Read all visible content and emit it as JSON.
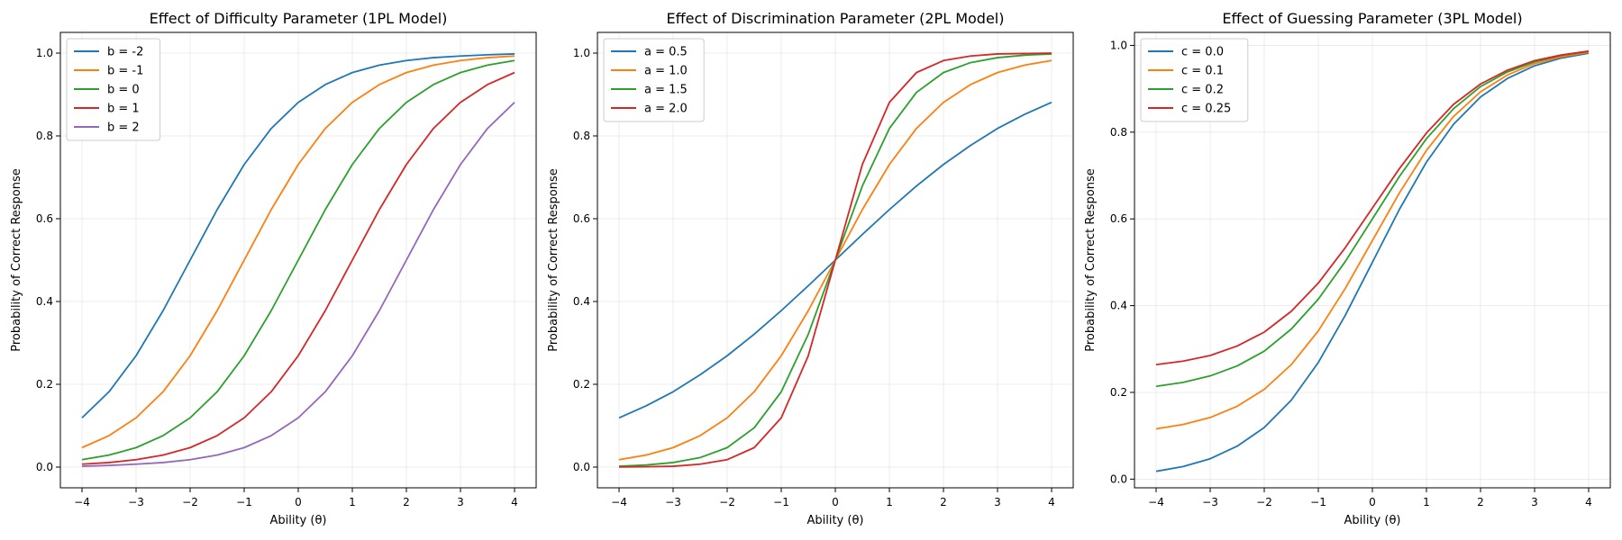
{
  "chart_data": [
    {
      "type": "line",
      "title": "Effect of Difficulty Parameter (1PL Model)",
      "xlabel": "Ability (θ)",
      "ylabel": "Probability of Correct Response",
      "xlim": [
        -4.4,
        4.4
      ],
      "ylim": [
        -0.05,
        1.05
      ],
      "xticks": [
        -4,
        -3,
        -2,
        -1,
        0,
        1,
        2,
        3,
        4
      ],
      "yticks": [
        0.0,
        0.2,
        0.4,
        0.6,
        0.8,
        1.0
      ],
      "grid": true,
      "legend_loc": "upper-left",
      "x": [
        -4,
        -3.5,
        -3,
        -2.5,
        -2,
        -1.5,
        -1,
        -0.5,
        0,
        0.5,
        1,
        1.5,
        2,
        2.5,
        3,
        3.5,
        4
      ],
      "series": [
        {
          "name": "b = -2",
          "color": "#1f77b4",
          "values": [
            0.119,
            0.182,
            0.269,
            0.378,
            0.5,
            0.622,
            0.731,
            0.818,
            0.881,
            0.924,
            0.953,
            0.971,
            0.982,
            0.989,
            0.993,
            0.996,
            0.998
          ]
        },
        {
          "name": "b = -1",
          "color": "#ff7f0e",
          "values": [
            0.047,
            0.076,
            0.119,
            0.182,
            0.269,
            0.378,
            0.5,
            0.622,
            0.731,
            0.818,
            0.881,
            0.924,
            0.953,
            0.971,
            0.982,
            0.989,
            0.993
          ]
        },
        {
          "name": "b = 0",
          "color": "#2ca02c",
          "values": [
            0.018,
            0.029,
            0.047,
            0.076,
            0.119,
            0.182,
            0.269,
            0.378,
            0.5,
            0.622,
            0.731,
            0.818,
            0.881,
            0.924,
            0.953,
            0.971,
            0.982
          ]
        },
        {
          "name": "b = 1",
          "color": "#d62728",
          "values": [
            0.007,
            0.011,
            0.018,
            0.029,
            0.047,
            0.076,
            0.119,
            0.182,
            0.269,
            0.378,
            0.5,
            0.622,
            0.731,
            0.818,
            0.881,
            0.924,
            0.953
          ]
        },
        {
          "name": "b = 2",
          "color": "#9467bd",
          "values": [
            0.002,
            0.004,
            0.007,
            0.011,
            0.018,
            0.029,
            0.047,
            0.076,
            0.119,
            0.182,
            0.269,
            0.378,
            0.5,
            0.622,
            0.731,
            0.818,
            0.881
          ]
        }
      ]
    },
    {
      "type": "line",
      "title": "Effect of Discrimination Parameter (2PL Model)",
      "xlabel": "Ability (θ)",
      "ylabel": "Probability of Correct Response",
      "xlim": [
        -4.4,
        4.4
      ],
      "ylim": [
        -0.05,
        1.05
      ],
      "xticks": [
        -4,
        -3,
        -2,
        -1,
        0,
        1,
        2,
        3,
        4
      ],
      "yticks": [
        0.0,
        0.2,
        0.4,
        0.6,
        0.8,
        1.0
      ],
      "grid": true,
      "legend_loc": "upper-left",
      "x": [
        -4,
        -3.5,
        -3,
        -2.5,
        -2,
        -1.5,
        -1,
        -0.5,
        0,
        0.5,
        1,
        1.5,
        2,
        2.5,
        3,
        3.5,
        4
      ],
      "series": [
        {
          "name": "a = 0.5",
          "color": "#1f77b4",
          "values": [
            0.119,
            0.148,
            0.182,
            0.223,
            0.269,
            0.321,
            0.378,
            0.438,
            0.5,
            0.562,
            0.622,
            0.679,
            0.731,
            0.777,
            0.818,
            0.852,
            0.881
          ]
        },
        {
          "name": "a = 1.0",
          "color": "#ff7f0e",
          "values": [
            0.018,
            0.029,
            0.047,
            0.076,
            0.119,
            0.182,
            0.269,
            0.378,
            0.5,
            0.622,
            0.731,
            0.818,
            0.881,
            0.924,
            0.953,
            0.971,
            0.982
          ]
        },
        {
          "name": "a = 1.5",
          "color": "#2ca02c",
          "values": [
            0.002,
            0.005,
            0.011,
            0.023,
            0.047,
            0.095,
            0.182,
            0.321,
            0.5,
            0.679,
            0.818,
            0.905,
            0.953,
            0.977,
            0.989,
            0.995,
            0.998
          ]
        },
        {
          "name": "a = 2.0",
          "color": "#d62728",
          "values": [
            0.0003,
            0.0009,
            0.002,
            0.007,
            0.018,
            0.047,
            0.119,
            0.269,
            0.5,
            0.731,
            0.881,
            0.953,
            0.982,
            0.993,
            0.998,
            0.999,
            1.0
          ]
        }
      ]
    },
    {
      "type": "line",
      "title": "Effect of Guessing Parameter (3PL Model)",
      "xlabel": "Ability (θ)",
      "ylabel": "Probability of Correct Response",
      "xlim": [
        -4.4,
        4.4
      ],
      "ylim": [
        -0.02,
        1.03
      ],
      "xticks": [
        -4,
        -3,
        -2,
        -1,
        0,
        1,
        2,
        3,
        4
      ],
      "yticks": [
        0.0,
        0.2,
        0.4,
        0.6,
        0.8,
        1.0
      ],
      "grid": true,
      "legend_loc": "upper-left",
      "x": [
        -4,
        -3.5,
        -3,
        -2.5,
        -2,
        -1.5,
        -1,
        -0.5,
        0,
        0.5,
        1,
        1.5,
        2,
        2.5,
        3,
        3.5,
        4
      ],
      "series": [
        {
          "name": "c = 0.0",
          "color": "#1f77b4",
          "values": [
            0.018,
            0.029,
            0.047,
            0.076,
            0.119,
            0.182,
            0.269,
            0.378,
            0.5,
            0.622,
            0.731,
            0.818,
            0.881,
            0.924,
            0.953,
            0.971,
            0.982
          ]
        },
        {
          "name": "c = 0.1",
          "color": "#ff7f0e",
          "values": [
            0.116,
            0.126,
            0.142,
            0.168,
            0.207,
            0.264,
            0.342,
            0.44,
            0.55,
            0.66,
            0.758,
            0.836,
            0.893,
            0.932,
            0.958,
            0.974,
            0.984
          ]
        },
        {
          "name": "c = 0.2",
          "color": "#2ca02c",
          "values": [
            0.214,
            0.223,
            0.238,
            0.261,
            0.295,
            0.346,
            0.415,
            0.502,
            0.6,
            0.698,
            0.785,
            0.854,
            0.905,
            0.939,
            0.962,
            0.977,
            0.986
          ]
        },
        {
          "name": "c = 0.25",
          "color": "#d62728",
          "values": [
            0.264,
            0.272,
            0.285,
            0.307,
            0.339,
            0.387,
            0.452,
            0.534,
            0.625,
            0.716,
            0.798,
            0.864,
            0.911,
            0.943,
            0.965,
            0.978,
            0.987
          ]
        }
      ]
    }
  ]
}
